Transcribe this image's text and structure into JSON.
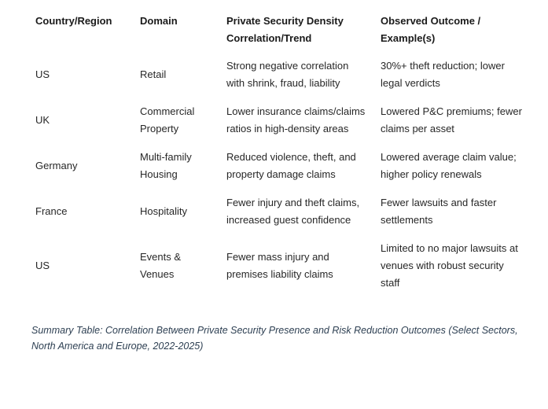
{
  "table": {
    "columns": {
      "country": "Country/Region",
      "domain": "Domain",
      "correlation": "Private Security Density Correlation/Trend",
      "outcome": "Observed Outcome / Example(s)"
    },
    "rows": [
      {
        "country": "US",
        "domain": "Retail",
        "correlation": "Strong negative correlation with shrink, fraud, liability",
        "outcome": "30%+ theft reduction; lower legal verdicts"
      },
      {
        "country": "UK",
        "domain": "Commercial Property",
        "correlation": "Lower insurance claims/claims ratios in high-density areas",
        "outcome": "Lowered P&C premiums; fewer claims per asset"
      },
      {
        "country": "Germany",
        "domain": "Multi-family Housing",
        "correlation": "Reduced violence, theft, and property damage claims",
        "outcome": "Lowered average claim value; higher policy renewals"
      },
      {
        "country": "France",
        "domain": "Hospitality",
        "correlation": "Fewer injury and theft claims, increased guest confidence",
        "outcome": "Fewer lawsuits and faster settlements"
      },
      {
        "country": "US",
        "domain": "Events & Venues",
        "correlation": "Fewer mass injury and premises liability claims",
        "outcome": "Limited to no major lawsuits at venues with robust security staff"
      }
    ]
  },
  "caption": {
    "text": "Summary Table: Correlation Between Private Security Presence and Risk Reduction Outcomes (Select Sectors, North America and Europe, 2022-2025)"
  },
  "colors": {
    "background": "#ffffff",
    "header_text": "#1a1a1a",
    "body_text": "#272727",
    "caption_text": "#2e4053"
  }
}
